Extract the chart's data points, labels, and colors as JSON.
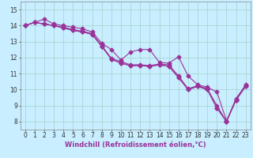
{
  "title": "",
  "xlabel": "Windchill (Refroidissement éolien,°C)",
  "ylabel": "",
  "bg_color": "#c8eeff",
  "line_color": "#993399",
  "xlim": [
    -0.5,
    23.5
  ],
  "ylim": [
    7.5,
    15.5
  ],
  "yticks": [
    8,
    9,
    10,
    11,
    12,
    13,
    14,
    15
  ],
  "xticks": [
    0,
    1,
    2,
    3,
    4,
    5,
    6,
    7,
    8,
    9,
    10,
    11,
    12,
    13,
    14,
    15,
    16,
    17,
    18,
    19,
    20,
    21,
    22,
    23
  ],
  "series": [
    [
      14.0,
      14.2,
      14.4,
      14.1,
      14.0,
      13.9,
      13.8,
      13.6,
      12.9,
      12.5,
      11.85,
      12.35,
      12.5,
      12.5,
      11.7,
      11.65,
      12.05,
      10.85,
      10.3,
      10.15,
      9.85,
      8.05,
      9.4,
      10.3
    ],
    [
      14.0,
      14.2,
      14.1,
      14.0,
      13.9,
      13.75,
      13.65,
      13.5,
      12.75,
      11.95,
      11.75,
      11.55,
      11.55,
      11.5,
      11.6,
      11.55,
      10.85,
      10.05,
      10.25,
      10.05,
      9.0,
      8.0,
      9.45,
      10.25
    ],
    [
      14.0,
      14.2,
      14.1,
      14.0,
      13.85,
      13.7,
      13.6,
      13.45,
      12.7,
      11.9,
      11.65,
      11.5,
      11.5,
      11.45,
      11.55,
      11.45,
      10.75,
      10.0,
      10.2,
      10.0,
      8.85,
      8.0,
      9.35,
      10.2
    ],
    [
      14.0,
      14.2,
      14.1,
      14.0,
      13.85,
      13.7,
      13.6,
      13.45,
      12.7,
      11.9,
      11.65,
      11.5,
      11.5,
      11.45,
      11.55,
      11.45,
      10.75,
      10.0,
      10.2,
      10.0,
      8.85,
      8.0,
      9.35,
      10.2
    ]
  ],
  "marker": "D",
  "markersize": 2.5,
  "linewidth": 0.8,
  "grid_color": "#99ccbb",
  "tick_fontsize": 5.5,
  "xlabel_fontsize": 6.0
}
